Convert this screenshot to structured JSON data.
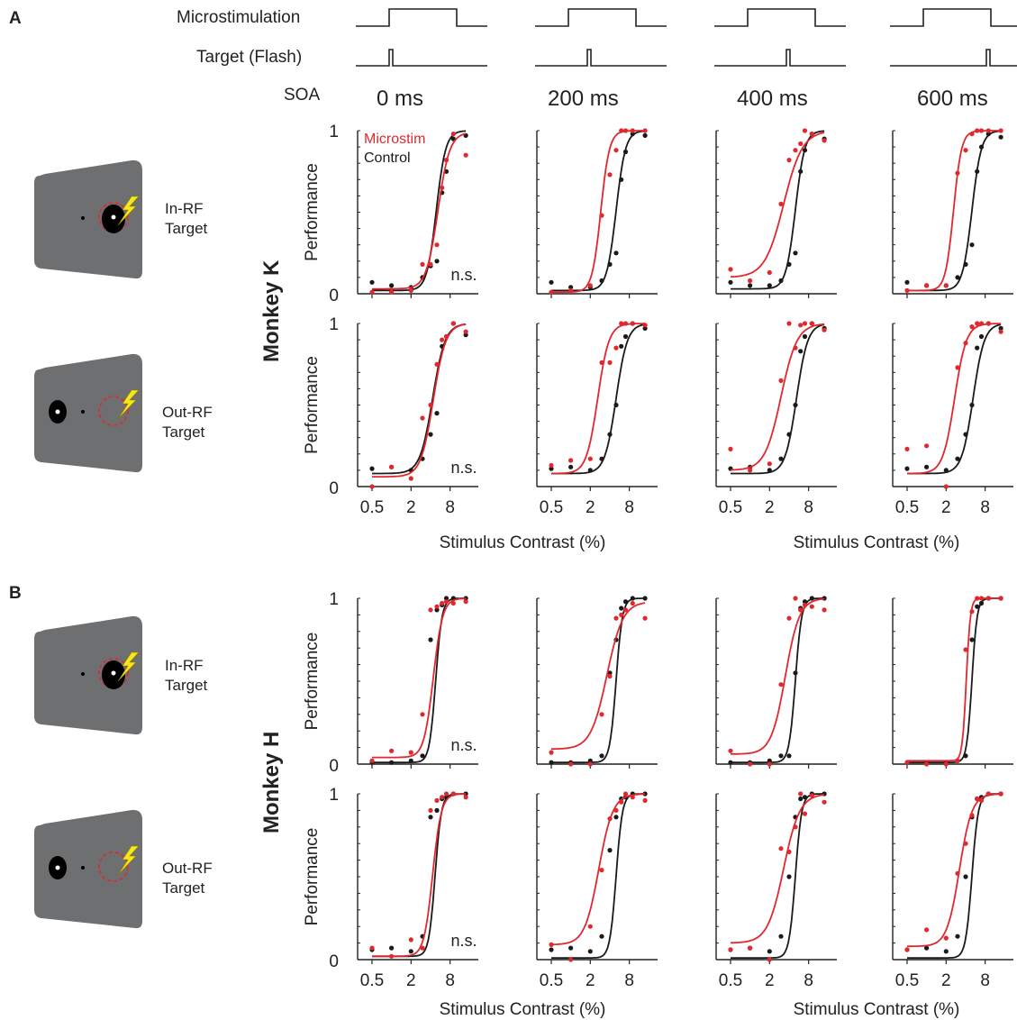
{
  "panels": [
    "A",
    "B"
  ],
  "timing": {
    "row_labels": [
      "Microstimulation",
      "Target (Flash)",
      "SOA"
    ],
    "soa_labels": [
      "0 ms",
      "200 ms",
      "400 ms",
      "600 ms"
    ]
  },
  "monkeys": [
    "Monkey K",
    "Monkey H"
  ],
  "conditions": [
    "In-RF\nTarget",
    "Out-RF\nTarget"
  ],
  "legend": {
    "microstim": "Microstim",
    "control": "Control"
  },
  "ns_label": "n.s.",
  "colors": {
    "microstim": "#e0282e",
    "control": "#1a1a1a",
    "screen": "#6e6f71",
    "bolt": "#f5e61e"
  },
  "chart_data": {
    "type": "scatter",
    "xscale": "log",
    "xlabel": "Stimulus Contrast (%)",
    "ylabel": "Performance",
    "xticks": [
      0.5,
      2,
      8
    ],
    "xtick_labels": [
      "0.5",
      "2",
      "8"
    ],
    "yticks": [
      0,
      1
    ],
    "xlim": [
      0.3,
      18
    ],
    "ylim": [
      0,
      1
    ],
    "x": [
      0.5,
      1,
      2,
      3,
      4,
      5,
      6,
      7,
      9,
      14
    ],
    "series": [
      {
        "name": "Microstim",
        "monkey": "Monkey K",
        "condition": "In-RF",
        "soa": "0 ms",
        "threshold": 5.2,
        "slope": 4.8,
        "base": 0.03,
        "lapse": 0.01,
        "values": [
          0.01,
          0.01,
          0.02,
          0.18,
          0.18,
          0.3,
          0.65,
          0.82,
          0.98,
          0.85
        ]
      },
      {
        "name": "Control",
        "monkey": "Monkey K",
        "condition": "In-RF",
        "soa": "0 ms",
        "threshold": 4.9,
        "slope": 6.0,
        "base": 0.02,
        "lapse": 0.0,
        "values": [
          0.07,
          0.05,
          0.04,
          0.1,
          0.17,
          0.2,
          0.62,
          0.75,
          0.95,
          0.97
        ]
      },
      {
        "name": "Microstim",
        "monkey": "Monkey K",
        "condition": "In-RF",
        "soa": "200 ms",
        "threshold": 2.9,
        "slope": 6.5,
        "base": 0.01,
        "lapse": 0.0,
        "values": [
          0.01,
          0.02,
          0.05,
          0.48,
          0.73,
          0.88,
          1.0,
          1.0,
          1.0,
          1.0
        ]
      },
      {
        "name": "Control",
        "monkey": "Monkey K",
        "condition": "In-RF",
        "soa": "200 ms",
        "threshold": 5.0,
        "slope": 6.0,
        "base": 0.02,
        "lapse": 0.0,
        "values": [
          0.07,
          0.04,
          0.04,
          0.08,
          0.18,
          0.25,
          0.7,
          0.87,
          0.98,
          0.97
        ]
      },
      {
        "name": "Microstim",
        "monkey": "Monkey K",
        "condition": "In-RF",
        "soa": "400 ms",
        "threshold": 3.3,
        "slope": 3.0,
        "base": 0.1,
        "lapse": 0.0,
        "values": [
          0.15,
          0.08,
          0.13,
          0.55,
          0.82,
          0.88,
          0.92,
          1.0,
          0.98,
          0.94
        ]
      },
      {
        "name": "Control",
        "monkey": "Monkey K",
        "condition": "In-RF",
        "soa": "400 ms",
        "threshold": 5.0,
        "slope": 6.0,
        "base": 0.03,
        "lapse": 0.0,
        "values": [
          0.07,
          0.05,
          0.05,
          0.08,
          0.18,
          0.25,
          0.75,
          0.88,
          0.98,
          0.95
        ]
      },
      {
        "name": "Microstim",
        "monkey": "Monkey K",
        "condition": "In-RF",
        "soa": "600 ms",
        "threshold": 2.6,
        "slope": 7.0,
        "base": 0.02,
        "lapse": 0.0,
        "values": [
          0.02,
          0.05,
          0.05,
          0.74,
          0.88,
          0.98,
          1.0,
          1.0,
          1.0,
          1.0
        ]
      },
      {
        "name": "Control",
        "monkey": "Monkey K",
        "condition": "In-RF",
        "soa": "600 ms",
        "threshold": 5.0,
        "slope": 6.0,
        "base": 0.02,
        "lapse": 0.0,
        "values": [
          0.07,
          0.05,
          0.05,
          0.1,
          0.18,
          0.3,
          0.75,
          0.9,
          0.98,
          0.96
        ]
      },
      {
        "name": "Microstim",
        "monkey": "Monkey K",
        "condition": "Out-RF",
        "soa": "0 ms",
        "threshold": 4.4,
        "slope": 4.5,
        "base": 0.06,
        "lapse": 0.0,
        "values": [
          0.0,
          0.12,
          0.05,
          0.42,
          0.5,
          0.75,
          0.9,
          0.92,
          1.0,
          0.95
        ]
      },
      {
        "name": "Control",
        "monkey": "Monkey K",
        "condition": "Out-RF",
        "soa": "0 ms",
        "threshold": 4.3,
        "slope": 4.5,
        "base": 0.08,
        "lapse": 0.0,
        "values": [
          0.11,
          0.12,
          0.1,
          0.17,
          0.32,
          0.45,
          0.86,
          0.92,
          1.0,
          0.93
        ]
      },
      {
        "name": "Microstim",
        "monkey": "Monkey K",
        "condition": "Out-RF",
        "soa": "200 ms",
        "threshold": 2.6,
        "slope": 5.0,
        "base": 0.08,
        "lapse": 0.0,
        "values": [
          0.13,
          0.16,
          0.17,
          0.76,
          0.76,
          0.85,
          1.0,
          1.0,
          1.0,
          0.99
        ]
      },
      {
        "name": "Control",
        "monkey": "Monkey K",
        "condition": "Out-RF",
        "soa": "200 ms",
        "threshold": 5.0,
        "slope": 5.0,
        "base": 0.08,
        "lapse": 0.0,
        "values": [
          0.11,
          0.12,
          0.1,
          0.17,
          0.32,
          0.5,
          0.86,
          0.92,
          1.0,
          0.97
        ]
      },
      {
        "name": "Microstim",
        "monkey": "Monkey K",
        "condition": "Out-RF",
        "soa": "400 ms",
        "threshold": 3.0,
        "slope": 3.5,
        "base": 0.1,
        "lapse": 0.0,
        "values": [
          0.23,
          0.1,
          0.14,
          0.65,
          1.0,
          0.85,
          0.99,
          1.0,
          1.0,
          0.96
        ]
      },
      {
        "name": "Control",
        "monkey": "Monkey K",
        "condition": "Out-RF",
        "soa": "400 ms",
        "threshold": 5.2,
        "slope": 5.0,
        "base": 0.08,
        "lapse": 0.0,
        "values": [
          0.11,
          0.12,
          0.1,
          0.17,
          0.32,
          0.5,
          0.83,
          0.92,
          1.0,
          0.97
        ]
      },
      {
        "name": "Microstim",
        "monkey": "Monkey K",
        "condition": "Out-RF",
        "soa": "600 ms",
        "threshold": 2.7,
        "slope": 4.8,
        "base": 0.08,
        "lapse": 0.0,
        "values": [
          0.23,
          0.25,
          0.0,
          0.73,
          0.88,
          0.98,
          1.0,
          1.0,
          1.0,
          0.95
        ]
      },
      {
        "name": "Control",
        "monkey": "Monkey K",
        "condition": "Out-RF",
        "soa": "600 ms",
        "threshold": 5.2,
        "slope": 5.0,
        "base": 0.08,
        "lapse": 0.0,
        "values": [
          0.11,
          0.12,
          0.1,
          0.17,
          0.32,
          0.5,
          0.85,
          0.92,
          1.0,
          0.97
        ]
      },
      {
        "name": "Microstim",
        "monkey": "Monkey H",
        "condition": "In-RF",
        "soa": "0 ms",
        "threshold": 4.4,
        "slope": 6.0,
        "base": 0.04,
        "lapse": 0.0,
        "values": [
          0.02,
          0.08,
          0.07,
          0.3,
          0.93,
          0.95,
          0.97,
          0.98,
          0.97,
          0.98
        ]
      },
      {
        "name": "Control",
        "monkey": "Monkey H",
        "condition": "In-RF",
        "soa": "0 ms",
        "threshold": 4.8,
        "slope": 9.0,
        "base": 0.01,
        "lapse": 0.0,
        "values": [
          0.01,
          0.01,
          0.02,
          0.05,
          0.75,
          0.93,
          0.96,
          1.0,
          1.0,
          1.0
        ]
      },
      {
        "name": "Microstim",
        "monkey": "Monkey H",
        "condition": "In-RF",
        "soa": "200 ms",
        "threshold": 3.6,
        "slope": 3.5,
        "base": 0.09,
        "lapse": 0.02,
        "values": [
          0.07,
          0.0,
          0.0,
          0.3,
          0.53,
          0.88,
          0.9,
          0.93,
          0.97,
          0.88
        ]
      },
      {
        "name": "Control",
        "monkey": "Monkey H",
        "condition": "In-RF",
        "soa": "200 ms",
        "threshold": 5.0,
        "slope": 9.0,
        "base": 0.01,
        "lapse": 0.0,
        "values": [
          0.01,
          0.01,
          0.02,
          0.05,
          0.55,
          0.75,
          0.94,
          0.98,
          1.0,
          1.0
        ]
      },
      {
        "name": "Microstim",
        "monkey": "Monkey H",
        "condition": "In-RF",
        "soa": "400 ms",
        "threshold": 3.5,
        "slope": 4.0,
        "base": 0.06,
        "lapse": 0.0,
        "values": [
          0.08,
          0.0,
          0.0,
          0.48,
          0.88,
          1.0,
          0.93,
          0.96,
          0.95,
          0.93
        ]
      },
      {
        "name": "Control",
        "monkey": "Monkey H",
        "condition": "In-RF",
        "soa": "400 ms",
        "threshold": 5.0,
        "slope": 9.0,
        "base": 0.01,
        "lapse": 0.0,
        "values": [
          0.01,
          0.01,
          0.02,
          0.05,
          0.05,
          0.55,
          0.94,
          0.98,
          1.0,
          1.0
        ]
      },
      {
        "name": "Microstim",
        "monkey": "Monkey H",
        "condition": "In-RF",
        "soa": "600 ms",
        "threshold": 4.1,
        "slope": 14.0,
        "base": 0.02,
        "lapse": 0.0,
        "values": [
          0.01,
          0.0,
          0.0,
          0.02,
          0.69,
          0.92,
          1.0,
          1.0,
          1.0,
          1.0
        ]
      },
      {
        "name": "Control",
        "monkey": "Monkey H",
        "condition": "In-RF",
        "soa": "600 ms",
        "threshold": 5.0,
        "slope": 11.0,
        "base": 0.01,
        "lapse": 0.0,
        "values": [
          0.01,
          0.01,
          0.01,
          0.02,
          0.05,
          0.75,
          0.95,
          0.97,
          1.0,
          1.0
        ]
      },
      {
        "name": "Microstim",
        "monkey": "Monkey H",
        "condition": "Out-RF",
        "soa": "0 ms",
        "threshold": 4.3,
        "slope": 6.5,
        "base": 0.02,
        "lapse": 0.0,
        "values": [
          0.07,
          0.02,
          0.12,
          0.07,
          0.9,
          0.96,
          0.98,
          1.0,
          1.0,
          0.98
        ]
      },
      {
        "name": "Control",
        "monkey": "Monkey H",
        "condition": "Out-RF",
        "soa": "0 ms",
        "threshold": 4.7,
        "slope": 9.0,
        "base": 0.02,
        "lapse": 0.0,
        "values": [
          0.06,
          0.07,
          0.05,
          0.14,
          0.86,
          0.9,
          0.97,
          0.98,
          1.0,
          1.0
        ]
      },
      {
        "name": "Microstim",
        "monkey": "Monkey H",
        "condition": "Out-RF",
        "soa": "200 ms",
        "threshold": 2.7,
        "slope": 4.0,
        "base": 0.09,
        "lapse": 0.0,
        "values": [
          0.09,
          0.0,
          0.2,
          0.54,
          0.85,
          0.9,
          0.95,
          1.0,
          0.98,
          0.96
        ]
      },
      {
        "name": "Control",
        "monkey": "Monkey H",
        "condition": "Out-RF",
        "soa": "200 ms",
        "threshold": 5.0,
        "slope": 9.0,
        "base": 0.01,
        "lapse": 0.0,
        "values": [
          0.06,
          0.07,
          0.05,
          0.14,
          0.66,
          0.86,
          0.97,
          0.98,
          1.0,
          1.0
        ]
      },
      {
        "name": "Microstim",
        "monkey": "Monkey H",
        "condition": "Out-RF",
        "soa": "400 ms",
        "threshold": 3.3,
        "slope": 3.5,
        "base": 0.1,
        "lapse": 0.0,
        "values": [
          0.06,
          0.07,
          0.0,
          0.67,
          0.65,
          0.8,
          1.0,
          0.88,
          0.99,
          0.95
        ]
      },
      {
        "name": "Control",
        "monkey": "Monkey H",
        "condition": "Out-RF",
        "soa": "400 ms",
        "threshold": 5.0,
        "slope": 9.0,
        "base": 0.01,
        "lapse": 0.0,
        "values": [
          0.06,
          0.07,
          0.05,
          0.14,
          0.5,
          0.86,
          0.97,
          0.98,
          1.0,
          1.0
        ]
      },
      {
        "name": "Microstim",
        "monkey": "Monkey H",
        "condition": "Out-RF",
        "soa": "600 ms",
        "threshold": 3.2,
        "slope": 4.5,
        "base": 0.08,
        "lapse": 0.0,
        "values": [
          0.06,
          0.18,
          0.13,
          0.52,
          0.7,
          0.87,
          0.97,
          0.96,
          1.0,
          1.0
        ]
      },
      {
        "name": "Control",
        "monkey": "Monkey H",
        "condition": "Out-RF",
        "soa": "600 ms",
        "threshold": 5.0,
        "slope": 9.0,
        "base": 0.01,
        "lapse": 0.0,
        "values": [
          0.06,
          0.07,
          0.05,
          0.14,
          0.5,
          0.86,
          0.97,
          0.98,
          1.0,
          1.0
        ]
      }
    ]
  }
}
